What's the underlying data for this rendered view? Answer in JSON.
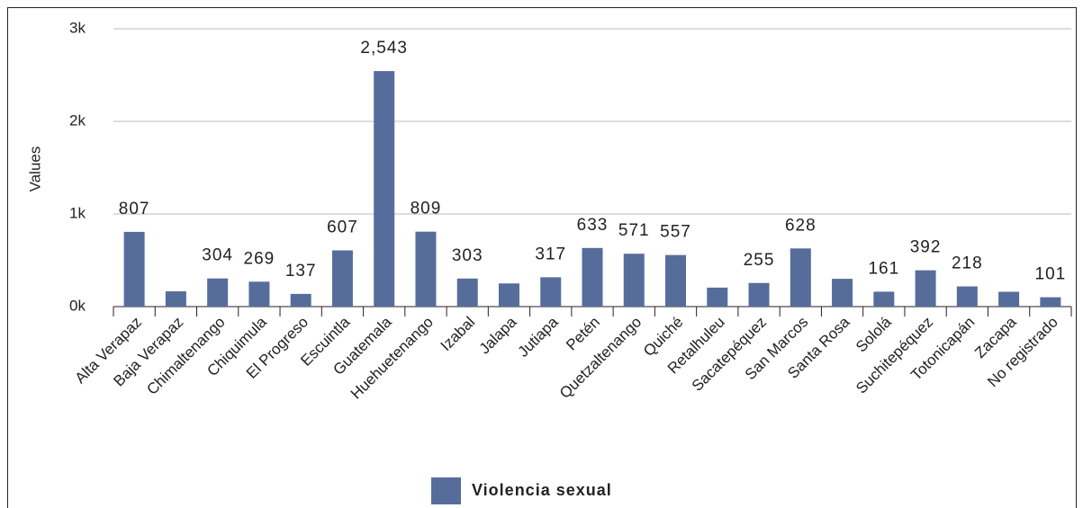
{
  "chart_data": {
    "type": "bar",
    "y_label": "Values",
    "categories": [
      "Alta Verapaz",
      "Baja Verapaz",
      "Chimaltenango",
      "Chiquimula",
      "El Progreso",
      "Escuintla",
      "Guatemala",
      "Huehuetenango",
      "Izabal",
      "Jalapa",
      "Jutiapa",
      "Petén",
      "Quetzaltenango",
      "Quiché",
      "Retalhuleu",
      "Sacatepéquez",
      "San Marcos",
      "Santa Rosa",
      "Sololá",
      "Suchitepéquez",
      "Totonicapán",
      "Zacapa",
      "No registrado"
    ],
    "series": [
      {
        "name": "Violencia sexual",
        "color": "#566d9c",
        "values": [
          807,
          165,
          304,
          269,
          137,
          607,
          2543,
          809,
          303,
          250,
          317,
          633,
          571,
          557,
          205,
          255,
          628,
          300,
          161,
          392,
          218,
          160,
          101
        ],
        "value_labels": [
          "807",
          null,
          "304",
          "269",
          "137",
          "607",
          "2,543",
          "809",
          "303",
          null,
          "317",
          "633",
          "571",
          "557",
          null,
          "255",
          "628",
          null,
          "161",
          "392",
          "218",
          null,
          "101"
        ]
      }
    ],
    "ylim": [
      0,
      3000
    ],
    "yticks": [
      {
        "value": 0,
        "label": "0k"
      },
      {
        "value": 1000,
        "label": "1k"
      },
      {
        "value": 2000,
        "label": "2k"
      },
      {
        "value": 3000,
        "label": "3k"
      }
    ],
    "grid": true
  }
}
